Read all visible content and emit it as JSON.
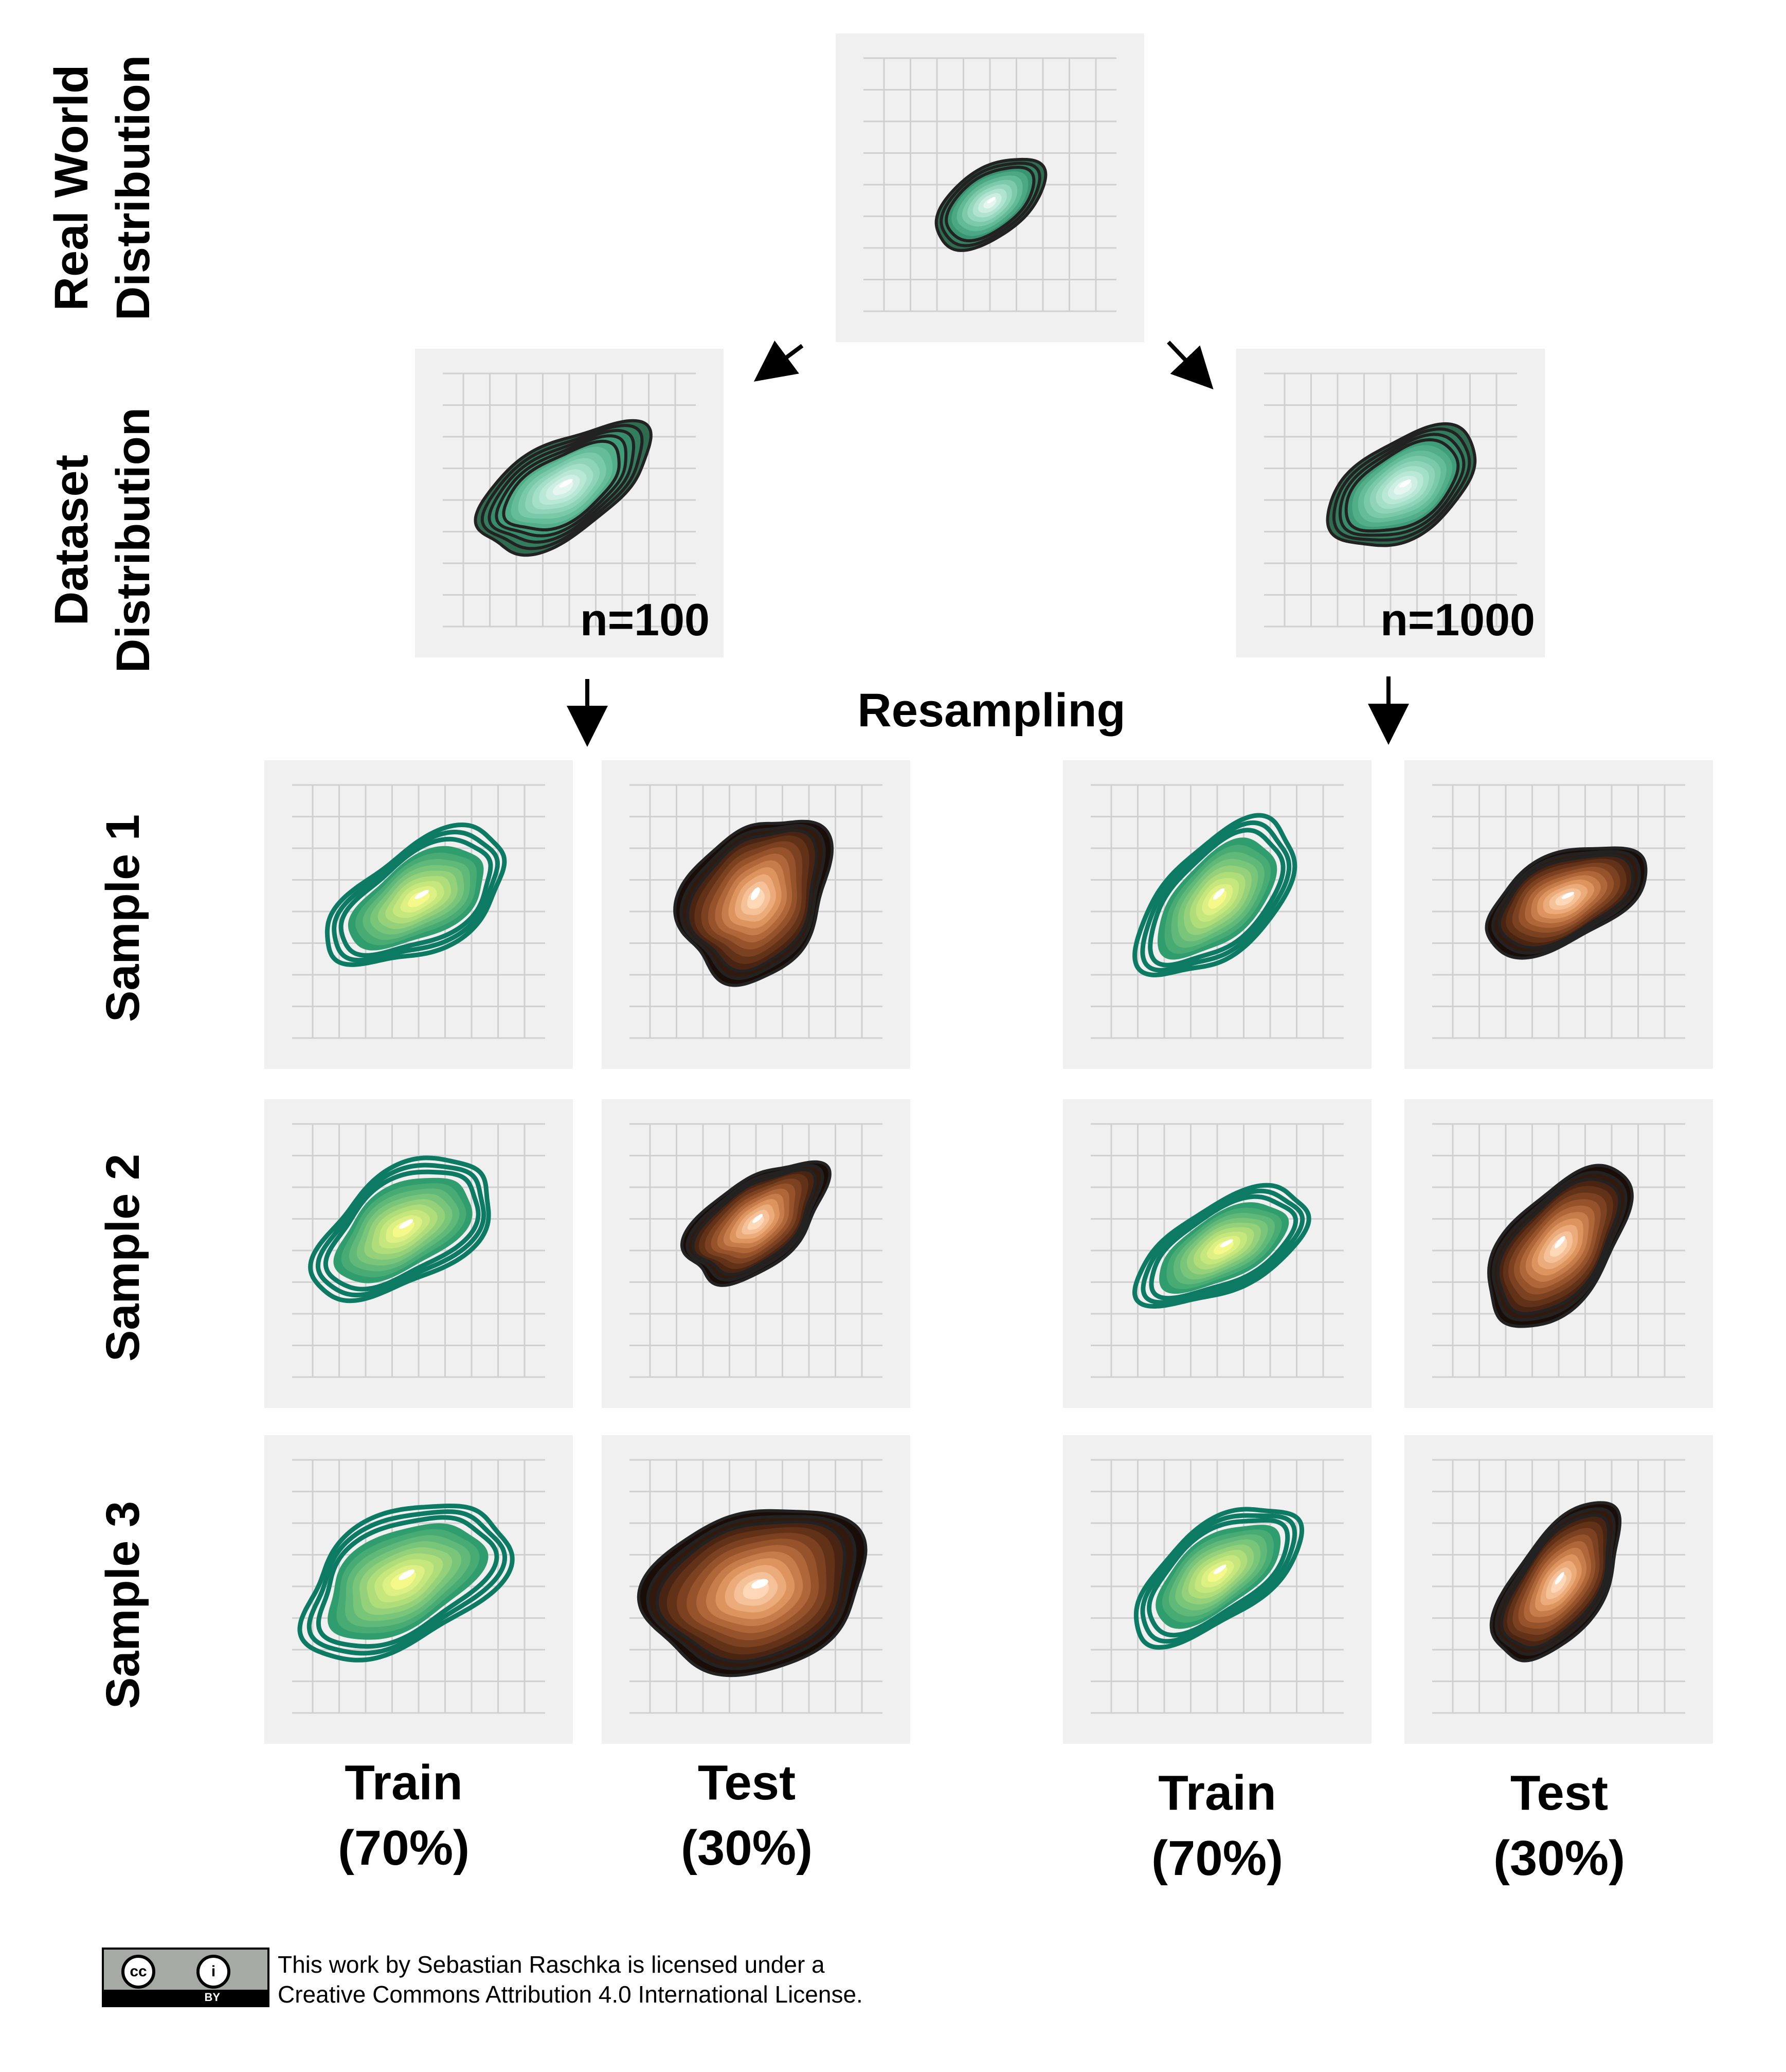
{
  "row_labels": {
    "real_world": [
      "Real World",
      "Distribution"
    ],
    "dataset": [
      "Dataset",
      "Distribution"
    ],
    "sample1": "Sample 1",
    "sample2": "Sample 2",
    "sample3": "Sample 3"
  },
  "n_labels": {
    "left": "n=100",
    "right": "n=1000"
  },
  "resampling_label": "Resampling",
  "column_labels": {
    "train": [
      "Train",
      "(70%)"
    ],
    "test": [
      "Test",
      "(30%)"
    ]
  },
  "license": {
    "line1": "This work by Sebastian Raschka is licensed under a",
    "line2": "Creative Commons Attribution 4.0 International License.",
    "badge_cc": "cc",
    "badge_person": "i",
    "badge_by": "BY"
  },
  "colors": {
    "panel_bg": "#f0f0f0",
    "grid": "#d0d0d0",
    "outline": "#222222",
    "real_palette": [
      "#2f6b4f",
      "#3a9a75",
      "#6fc3a0",
      "#a9e2cc",
      "#e6f7f1"
    ],
    "train_palette": [
      "#0d7a64",
      "#2a9a6e",
      "#6cc07a",
      "#b5e07a",
      "#f4f98a"
    ],
    "test_palette": [
      "#1a0d08",
      "#5a2d16",
      "#a35a2e",
      "#e49a63",
      "#ffd8b8"
    ]
  }
}
